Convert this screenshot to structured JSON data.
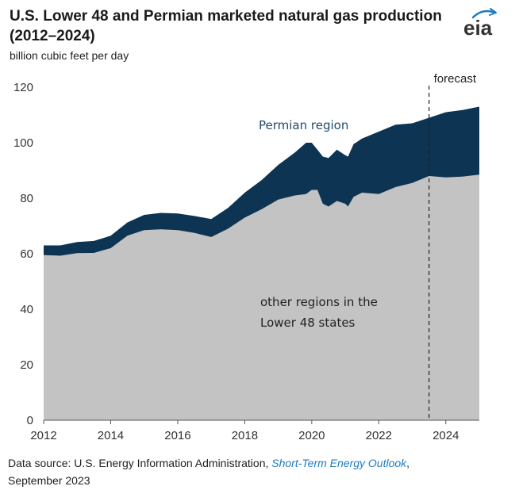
{
  "header": {
    "title": "U.S. Lower 48 and Permian marketed natural gas production (2012–2024)",
    "subtitle": "billion cubic feet per day",
    "logo_text": "eia"
  },
  "footer": {
    "source_prefix": "Data source: U.S. Energy Information Administration, ",
    "source_link": "Short-Term Energy Outlook",
    "source_suffix": ",",
    "source_date": "September 2023"
  },
  "colors": {
    "other_regions": "#c3c3c3",
    "permian": "#0d3553",
    "logo_accent": "#1e7cc3"
  },
  "chart_data": {
    "type": "area",
    "stacked": true,
    "xlabel": "",
    "ylabel": "",
    "xlim": [
      2012,
      2025
    ],
    "ylim": [
      0,
      120
    ],
    "x_ticks": [
      "2012",
      "2014",
      "2016",
      "2018",
      "2020",
      "2022",
      "2024"
    ],
    "y_ticks": [
      "0",
      "20",
      "40",
      "60",
      "80",
      "100",
      "120"
    ],
    "forecast_start": 2023.5,
    "annotations": {
      "forecast": "forecast",
      "permian": "Permian region",
      "other_line1": "other regions in the",
      "other_line2": "Lower 48 states"
    },
    "x": [
      2012.0,
      2012.5,
      2013.0,
      2013.5,
      2014.0,
      2014.5,
      2015.0,
      2015.5,
      2016.0,
      2016.5,
      2017.0,
      2017.5,
      2018.0,
      2018.5,
      2019.0,
      2019.5,
      2019.83,
      2020.0,
      2020.17,
      2020.33,
      2020.5,
      2020.75,
      2021.0,
      2021.08,
      2021.25,
      2021.5,
      2022.0,
      2022.5,
      2023.0,
      2023.5,
      2024.0,
      2024.5,
      2025.0
    ],
    "series": [
      {
        "name": "other regions in the Lower 48 states",
        "values": [
          59.5,
          59.3,
          60.2,
          60.3,
          62.0,
          66.5,
          68.5,
          68.8,
          68.5,
          67.5,
          66.0,
          69.0,
          73.0,
          76.0,
          79.5,
          81.0,
          81.5,
          83.0,
          83.0,
          78.0,
          77.0,
          79.0,
          78.0,
          77.0,
          80.5,
          82.0,
          81.5,
          84.0,
          85.5,
          88.0,
          87.5,
          87.8,
          88.5
        ]
      },
      {
        "name": "Permian region",
        "values": [
          3.5,
          3.7,
          4.0,
          4.3,
          4.5,
          4.8,
          5.5,
          5.9,
          6.0,
          6.1,
          6.5,
          7.5,
          9.0,
          10.5,
          12.5,
          15.5,
          18.5,
          17.0,
          14.5,
          17.0,
          17.5,
          18.5,
          17.5,
          18.0,
          19.0,
          19.5,
          22.5,
          22.5,
          21.5,
          21.0,
          23.5,
          24.0,
          24.5
        ]
      }
    ]
  }
}
